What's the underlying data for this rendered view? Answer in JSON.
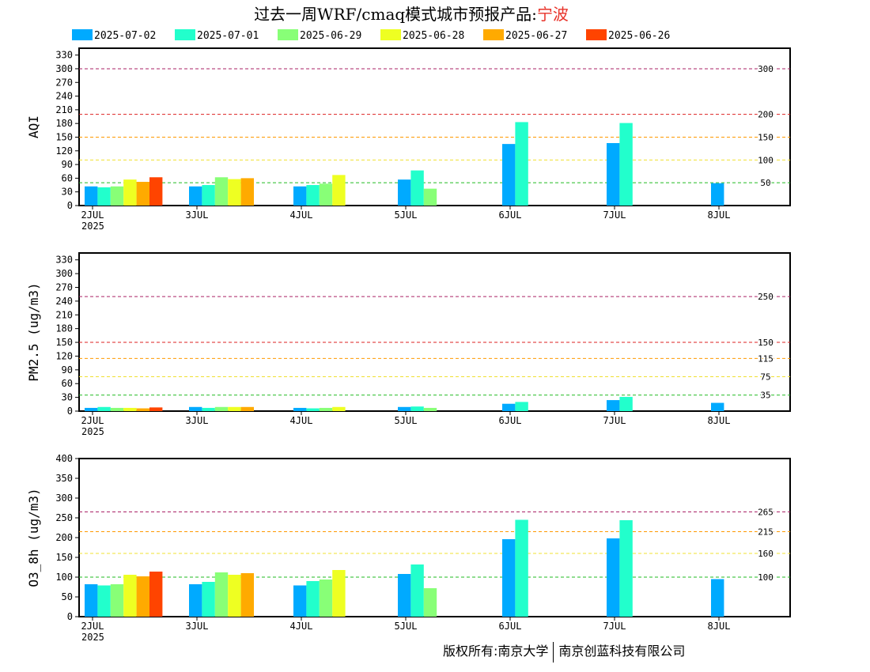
{
  "title": {
    "prefix": "过去一周WRF/cmaq模式城市预报产品:",
    "city": "宁波"
  },
  "footer": {
    "left": "版权所有:南京大学",
    "right": "南京创蓝科技有限公司"
  },
  "colors": {
    "threshold_green": "#22bb22",
    "threshold_yellow": "#f0e030",
    "threshold_orange": "#ff9900",
    "threshold_red": "#dd2222",
    "threshold_purple": "#aa2266"
  },
  "chart_data": [
    {
      "type": "bar",
      "id": "aqi",
      "ylabel": "AQI",
      "ylim": [
        0,
        345
      ],
      "yticks": [
        0,
        30,
        60,
        90,
        120,
        150,
        180,
        210,
        240,
        270,
        300,
        330
      ],
      "xticks": [
        "2JUL",
        "3JUL",
        "4JUL",
        "5JUL",
        "6JUL",
        "7JUL",
        "8JUL"
      ],
      "year_label": "2025",
      "thresholds": [
        {
          "value": 300,
          "label": "300",
          "color": "purple"
        },
        {
          "value": 200,
          "label": "200",
          "color": "red"
        },
        {
          "value": 150,
          "label": "150",
          "color": "orange"
        },
        {
          "value": 100,
          "label": "100",
          "color": "yellow"
        },
        {
          "value": 50,
          "label": "50",
          "color": "green"
        }
      ],
      "series": [
        {
          "name": "2025-07-02",
          "color": "#00aaff",
          "values": [
            42,
            42,
            42,
            57,
            135,
            137,
            49
          ]
        },
        {
          "name": "2025-07-01",
          "color": "#22ffcc",
          "values": [
            40,
            45,
            45,
            77,
            183,
            181,
            null
          ]
        },
        {
          "name": "2025-06-29",
          "color": "#88ff77",
          "values": [
            42,
            62,
            48,
            37,
            null,
            null,
            null
          ]
        },
        {
          "name": "2025-06-28",
          "color": "#eeff22",
          "values": [
            57,
            58,
            67,
            null,
            null,
            null,
            null
          ]
        },
        {
          "name": "2025-06-27",
          "color": "#ffaa00",
          "values": [
            52,
            60,
            null,
            null,
            null,
            null,
            null
          ]
        },
        {
          "name": "2025-06-26",
          "color": "#ff4400",
          "values": [
            62,
            null,
            null,
            null,
            null,
            null,
            null
          ]
        }
      ]
    },
    {
      "type": "bar",
      "id": "pm25",
      "ylabel": "PM2.5 (ug/m3)",
      "ylim": [
        0,
        345
      ],
      "yticks": [
        0,
        30,
        60,
        90,
        120,
        150,
        180,
        210,
        240,
        270,
        300,
        330
      ],
      "xticks": [
        "2JUL",
        "3JUL",
        "4JUL",
        "5JUL",
        "6JUL",
        "7JUL",
        "8JUL"
      ],
      "year_label": "2025",
      "thresholds": [
        {
          "value": 250,
          "label": "250",
          "color": "purple"
        },
        {
          "value": 150,
          "label": "150",
          "color": "red"
        },
        {
          "value": 115,
          "label": "115",
          "color": "orange"
        },
        {
          "value": 75,
          "label": "75",
          "color": "yellow"
        },
        {
          "value": 35,
          "label": "35",
          "color": "green"
        }
      ],
      "series": [
        {
          "name": "2025-07-02",
          "color": "#00aaff",
          "values": [
            7,
            9,
            7,
            9,
            16,
            24,
            18
          ]
        },
        {
          "name": "2025-07-01",
          "color": "#22ffcc",
          "values": [
            9,
            7,
            6,
            10,
            20,
            31,
            null
          ]
        },
        {
          "name": "2025-06-29",
          "color": "#88ff77",
          "values": [
            7,
            9,
            7,
            7,
            null,
            null,
            null
          ]
        },
        {
          "name": "2025-06-28",
          "color": "#eeff22",
          "values": [
            7,
            9,
            9,
            null,
            null,
            null,
            null
          ]
        },
        {
          "name": "2025-06-27",
          "color": "#ffaa00",
          "values": [
            6,
            9,
            null,
            null,
            null,
            null,
            null
          ]
        },
        {
          "name": "2025-06-26",
          "color": "#ff4400",
          "values": [
            8,
            null,
            null,
            null,
            null,
            null,
            null
          ]
        }
      ]
    },
    {
      "type": "bar",
      "id": "o3",
      "ylabel": "O3_8h (ug/m3)",
      "ylim": [
        0,
        400
      ],
      "yticks": [
        0,
        50,
        100,
        150,
        200,
        250,
        300,
        350,
        400
      ],
      "xticks": [
        "2JUL",
        "3JUL",
        "4JUL",
        "5JUL",
        "6JUL",
        "7JUL",
        "8JUL"
      ],
      "year_label": "2025",
      "thresholds": [
        {
          "value": 265,
          "label": "265",
          "color": "purple"
        },
        {
          "value": 215,
          "label": "215",
          "color": "orange"
        },
        {
          "value": 160,
          "label": "160",
          "color": "yellow"
        },
        {
          "value": 100,
          "label": "100",
          "color": "green"
        }
      ],
      "series": [
        {
          "name": "2025-07-02",
          "color": "#00aaff",
          "values": [
            82,
            82,
            79,
            108,
            196,
            198,
            95
          ]
        },
        {
          "name": "2025-07-01",
          "color": "#22ffcc",
          "values": [
            79,
            88,
            90,
            132,
            245,
            244,
            null
          ]
        },
        {
          "name": "2025-06-29",
          "color": "#88ff77",
          "values": [
            82,
            112,
            94,
            72,
            null,
            null,
            null
          ]
        },
        {
          "name": "2025-06-28",
          "color": "#eeff22",
          "values": [
            106,
            106,
            118,
            null,
            null,
            null,
            null
          ]
        },
        {
          "name": "2025-06-27",
          "color": "#ffaa00",
          "values": [
            102,
            110,
            null,
            null,
            null,
            null,
            null
          ]
        },
        {
          "name": "2025-06-26",
          "color": "#ff4400",
          "values": [
            114,
            null,
            null,
            null,
            null,
            null,
            null
          ]
        }
      ]
    }
  ]
}
